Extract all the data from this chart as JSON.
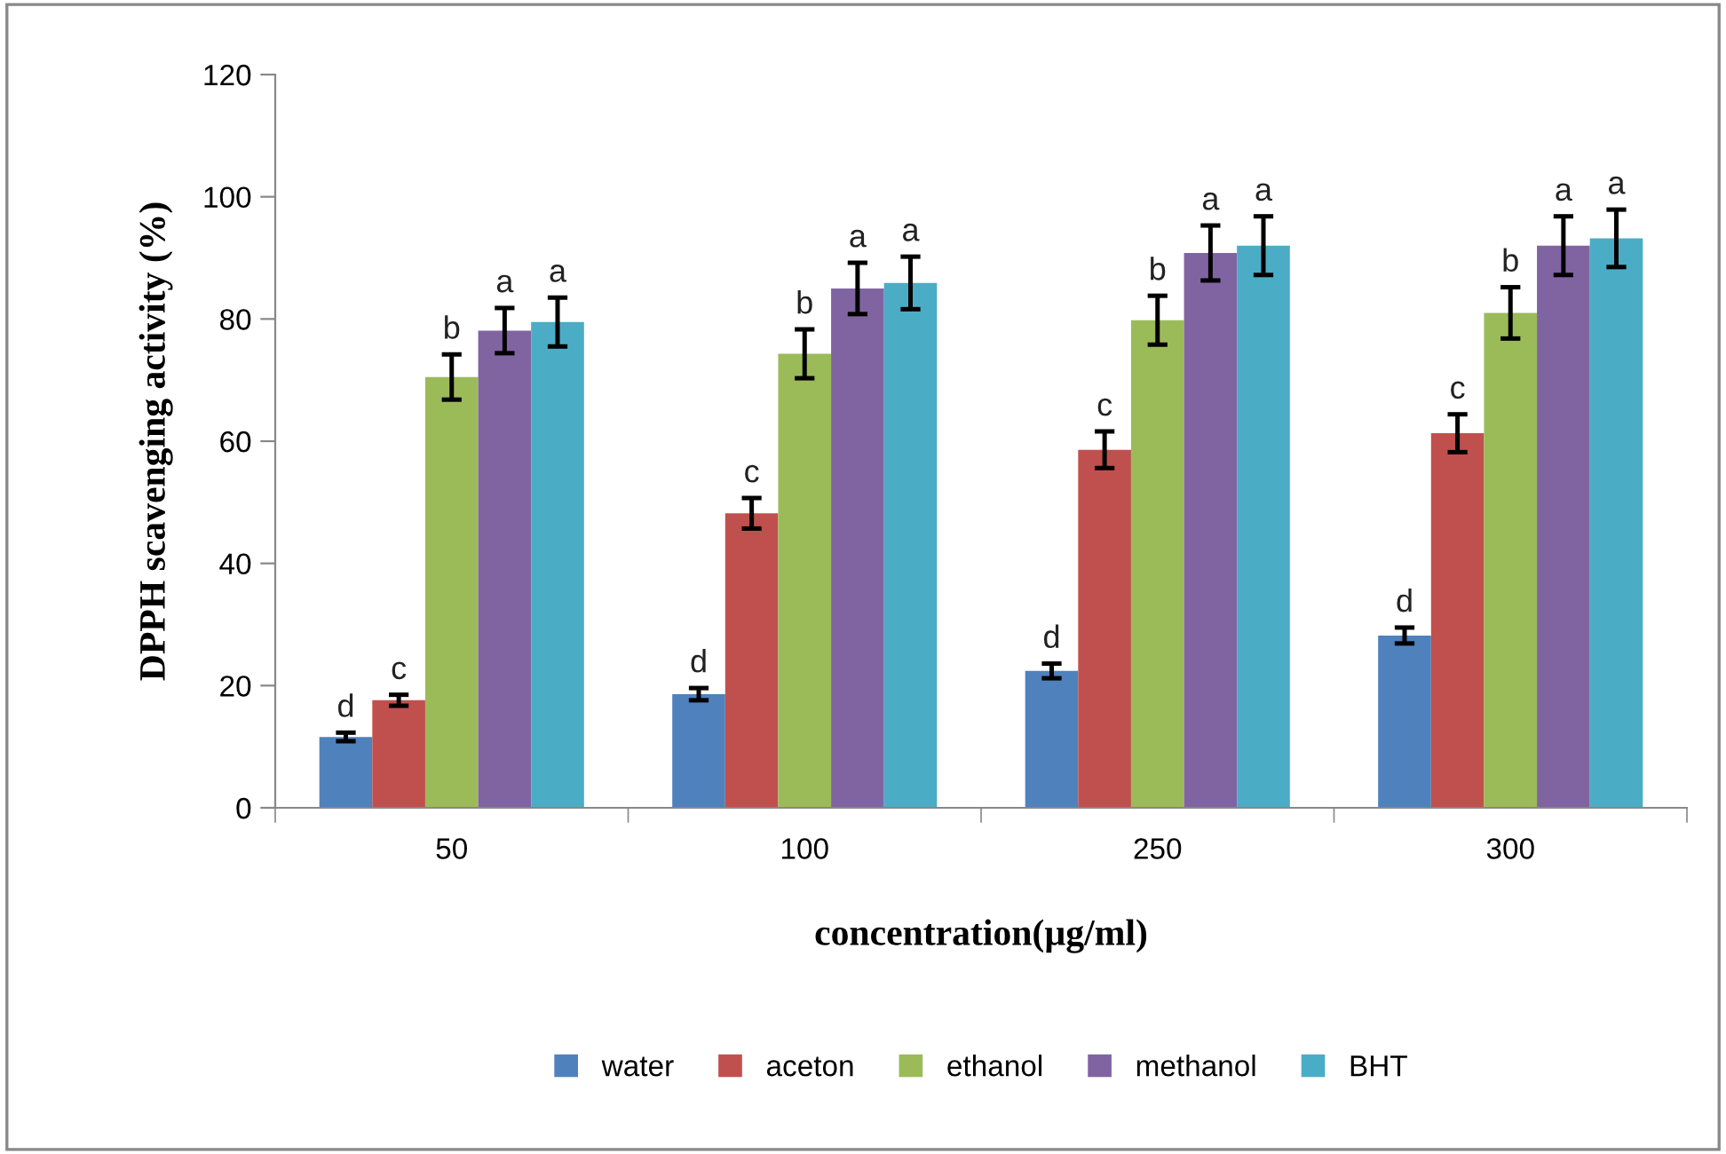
{
  "chart_data": {
    "type": "bar",
    "xlabel": "concentration(µg/ml)",
    "ylabel": "DPPH scavenging activity (%)",
    "categories": [
      "50",
      "100",
      "250",
      "300"
    ],
    "ylim": [
      0,
      120
    ],
    "yticks": [
      0,
      20,
      40,
      60,
      80,
      100,
      120
    ],
    "grid": false,
    "legend": "bottom",
    "series": [
      {
        "name": "water",
        "color": "#4f81bd",
        "values": [
          11.6,
          18.6,
          22.4,
          28.2
        ],
        "errors": [
          0.7,
          1.0,
          1.2,
          1.3
        ],
        "value_labels": [
          "d",
          "d",
          "d",
          "d"
        ]
      },
      {
        "name": "aceton",
        "color": "#c0504d",
        "values": [
          17.6,
          48.2,
          58.6,
          61.3
        ],
        "errors": [
          0.9,
          2.5,
          3.0,
          3.1
        ],
        "value_labels": [
          "c",
          "c",
          "c",
          "c"
        ]
      },
      {
        "name": "ethanol",
        "color": "#9bbb59",
        "values": [
          70.5,
          74.3,
          79.8,
          81.0
        ],
        "errors": [
          3.7,
          4.0,
          4.0,
          4.2
        ],
        "value_labels": [
          "b",
          "b",
          "b",
          "b"
        ]
      },
      {
        "name": "methanol",
        "color": "#8064a2",
        "values": [
          78.1,
          85.0,
          90.8,
          92.0
        ],
        "errors": [
          3.7,
          4.2,
          4.5,
          4.8
        ],
        "value_labels": [
          "a",
          "a",
          "a",
          "a"
        ]
      },
      {
        "name": "BHT",
        "color": "#4bacc6",
        "values": [
          79.5,
          85.9,
          92.0,
          93.2
        ],
        "errors": [
          4.0,
          4.3,
          4.8,
          4.7
        ],
        "value_labels": [
          "a",
          "a",
          "a",
          "a"
        ]
      }
    ]
  }
}
